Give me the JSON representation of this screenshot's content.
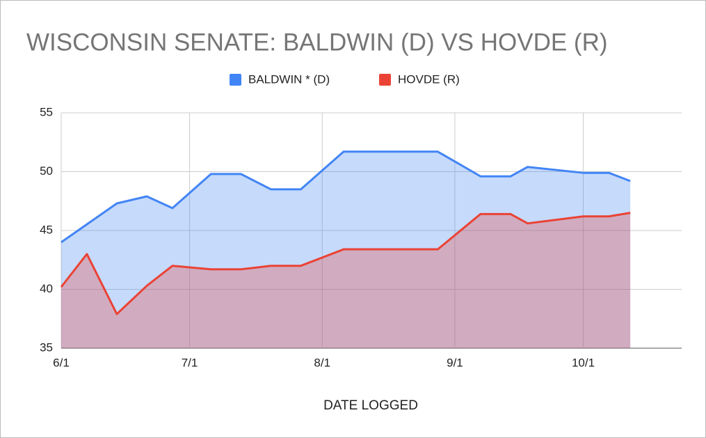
{
  "chart_data": {
    "type": "area",
    "title": "WISCONSIN SENATE: BALDWIN (D) VS HOVDE (R)",
    "x_label": "DATE LOGGED",
    "xlim": [
      "6/1",
      "10/24"
    ],
    "xticks": [
      "6/1",
      "7/1",
      "8/1",
      "9/1",
      "10/1"
    ],
    "ylim": [
      35,
      55
    ],
    "yticks": [
      35,
      40,
      45,
      50,
      55
    ],
    "grid": true,
    "legend": "top",
    "series": [
      {
        "name": "BALDWIN * (D)",
        "color": "#4285f4",
        "x": [
          "6/1",
          "6/14",
          "6/21",
          "6/27",
          "7/6",
          "7/13",
          "7/20",
          "7/27",
          "8/6",
          "8/28",
          "9/7",
          "9/14",
          "9/18",
          "10/1",
          "10/7",
          "10/12"
        ],
        "values": [
          44.0,
          47.3,
          47.9,
          46.9,
          49.8,
          49.8,
          48.5,
          48.5,
          51.7,
          51.7,
          49.6,
          49.6,
          50.4,
          49.9,
          49.9,
          49.2
        ]
      },
      {
        "name": "HOVDE (R)",
        "color": "#ea4335",
        "x": [
          "6/1",
          "6/7",
          "6/14",
          "6/21",
          "6/27",
          "7/6",
          "7/13",
          "7/20",
          "7/27",
          "8/6",
          "8/28",
          "9/7",
          "9/14",
          "9/18",
          "10/1",
          "10/7",
          "10/12"
        ],
        "values": [
          40.2,
          43.0,
          37.9,
          40.3,
          42.0,
          41.7,
          41.7,
          42.0,
          42.0,
          43.4,
          43.4,
          46.4,
          46.4,
          45.6,
          46.2,
          46.2,
          46.5
        ]
      }
    ]
  }
}
